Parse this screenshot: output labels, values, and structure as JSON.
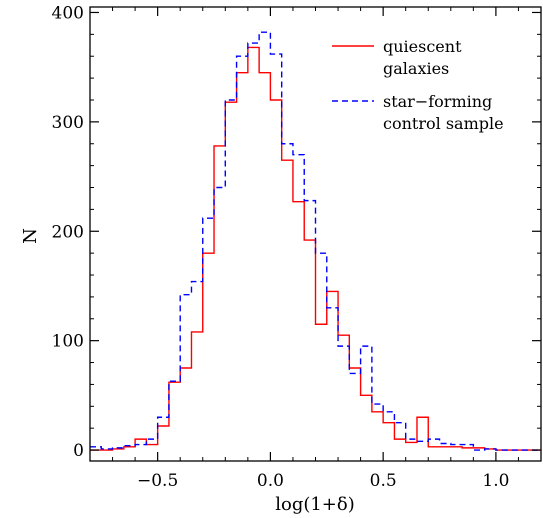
{
  "chart_data": {
    "type": "step-histogram",
    "xlabel": "log(1+δ)",
    "ylabel": "N",
    "xlim": [
      -0.8,
      1.2
    ],
    "ylim": [
      -10,
      405
    ],
    "x_ticks": [
      -0.5,
      0.0,
      0.5,
      1.0
    ],
    "x_tick_labels": [
      "−0.5",
      "0.0",
      "0.5",
      "1.0"
    ],
    "y_ticks": [
      0,
      100,
      200,
      300,
      400
    ],
    "y_tick_labels": [
      "0",
      "100",
      "200",
      "300",
      "400"
    ],
    "grid": false,
    "legend_position": "top-right",
    "bin_edges": [
      -0.8,
      -0.75,
      -0.7,
      -0.65,
      -0.6,
      -0.55,
      -0.5,
      -0.45,
      -0.4,
      -0.35,
      -0.3,
      -0.25,
      -0.2,
      -0.15,
      -0.1,
      -0.05,
      0.0,
      0.05,
      0.1,
      0.15,
      0.2,
      0.25,
      0.3,
      0.35,
      0.4,
      0.45,
      0.5,
      0.55,
      0.6,
      0.65,
      0.7,
      0.75,
      0.8,
      0.85,
      0.9,
      0.95,
      1.0,
      1.05,
      1.1,
      1.15,
      1.2
    ],
    "series": [
      {
        "name": "quiescent\ngalaxies",
        "label_lines": [
          "quiescent",
          "galaxies"
        ],
        "color": "#ff0000",
        "dash": "solid",
        "values": [
          0,
          0,
          1,
          3,
          10,
          5,
          22,
          62,
          75,
          108,
          180,
          278,
          318,
          345,
          368,
          345,
          320,
          265,
          227,
          192,
          115,
          145,
          105,
          75,
          50,
          35,
          25,
          10,
          7,
          30,
          3,
          3,
          3,
          2,
          2,
          1,
          0,
          0,
          0,
          0
        ]
      },
      {
        "name": "star−forming\ncontrol sample",
        "label_lines": [
          "star−forming",
          "control sample"
        ],
        "color": "#0000ff",
        "dash": "dashed",
        "values": [
          3,
          1,
          2,
          4,
          5,
          10,
          30,
          63,
          142,
          154,
          212,
          240,
          320,
          360,
          372,
          382,
          362,
          280,
          270,
          228,
          180,
          130,
          95,
          70,
          95,
          42,
          35,
          25,
          10,
          8,
          10,
          6,
          5,
          5,
          0,
          1,
          0,
          0,
          0,
          0
        ]
      }
    ]
  }
}
